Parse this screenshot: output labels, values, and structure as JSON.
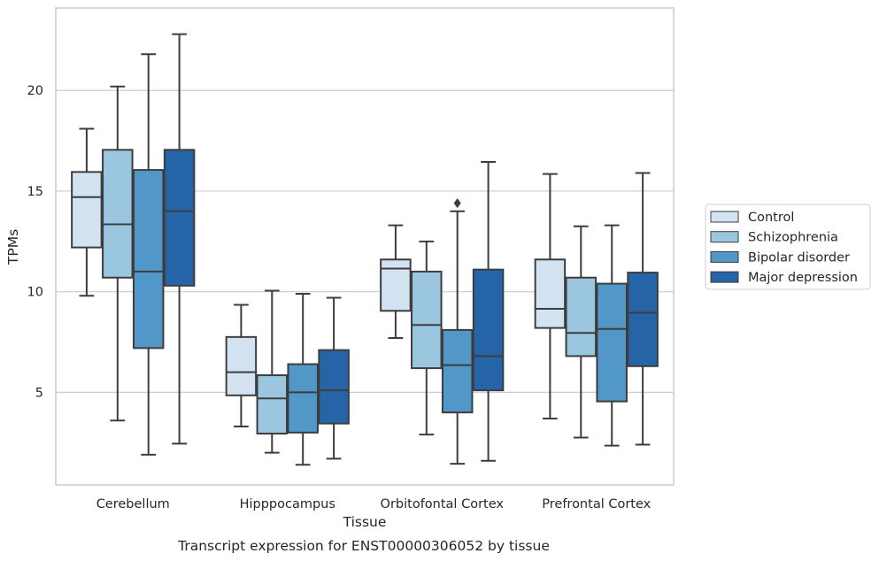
{
  "caption": "Transcript expression for ENST00000306052 by tissue",
  "chart_data": {
    "type": "box",
    "xlabel": "Tissue",
    "ylabel": "TPMs",
    "ylim": [
      0.4,
      24.1
    ],
    "yticks": [
      5,
      10,
      15,
      20
    ],
    "grid": "horizontal",
    "legend_position": "right",
    "categories": [
      "Cerebellum",
      "Hipppocampus",
      "Orbitofontal Cortex",
      "Prefrontal Cortex"
    ],
    "series": [
      {
        "name": "Control",
        "color": "#d4e3f2",
        "boxes": [
          {
            "whislo": 9.8,
            "q1": 12.2,
            "med": 14.7,
            "q3": 15.95,
            "whishi": 18.1,
            "fliers": []
          },
          {
            "whislo": 3.3,
            "q1": 4.85,
            "med": 6.0,
            "q3": 7.75,
            "whishi": 9.35,
            "fliers": []
          },
          {
            "whislo": 7.7,
            "q1": 9.05,
            "med": 11.15,
            "q3": 11.6,
            "whishi": 13.3,
            "fliers": []
          },
          {
            "whislo": 3.7,
            "q1": 8.2,
            "med": 9.15,
            "q3": 11.6,
            "whishi": 15.85,
            "fliers": []
          }
        ]
      },
      {
        "name": "Schizophrenia",
        "color": "#9ac6df",
        "boxes": [
          {
            "whislo": 3.6,
            "q1": 10.7,
            "med": 13.35,
            "q3": 17.05,
            "whishi": 20.2,
            "fliers": []
          },
          {
            "whislo": 2.0,
            "q1": 2.95,
            "med": 4.7,
            "q3": 5.85,
            "whishi": 10.05,
            "fliers": []
          },
          {
            "whislo": 2.9,
            "q1": 6.2,
            "med": 8.35,
            "q3": 11.0,
            "whishi": 12.5,
            "fliers": []
          },
          {
            "whislo": 2.75,
            "q1": 6.8,
            "med": 7.95,
            "q3": 10.7,
            "whishi": 13.25,
            "fliers": []
          }
        ]
      },
      {
        "name": "Bipolar disorder",
        "color": "#5197c7",
        "boxes": [
          {
            "whislo": 1.9,
            "q1": 7.2,
            "med": 11.0,
            "q3": 16.05,
            "whishi": 21.8,
            "fliers": []
          },
          {
            "whislo": 1.4,
            "q1": 3.0,
            "med": 5.0,
            "q3": 6.4,
            "whishi": 9.9,
            "fliers": []
          },
          {
            "whislo": 1.45,
            "q1": 4.0,
            "med": 6.35,
            "q3": 8.1,
            "whishi": 14.0,
            "fliers": [
              14.4
            ]
          },
          {
            "whislo": 2.35,
            "q1": 4.55,
            "med": 8.15,
            "q3": 10.4,
            "whishi": 13.3,
            "fliers": []
          }
        ]
      },
      {
        "name": "Major depression",
        "color": "#2664a8",
        "boxes": [
          {
            "whislo": 2.45,
            "q1": 10.3,
            "med": 14.0,
            "q3": 17.05,
            "whishi": 22.8,
            "fliers": []
          },
          {
            "whislo": 1.7,
            "q1": 3.45,
            "med": 5.1,
            "q3": 7.1,
            "whishi": 9.7,
            "fliers": []
          },
          {
            "whislo": 1.6,
            "q1": 5.1,
            "med": 6.8,
            "q3": 11.1,
            "whishi": 16.45,
            "fliers": []
          },
          {
            "whislo": 2.4,
            "q1": 6.3,
            "med": 8.95,
            "q3": 10.95,
            "whishi": 15.9,
            "fliers": []
          }
        ]
      }
    ]
  }
}
